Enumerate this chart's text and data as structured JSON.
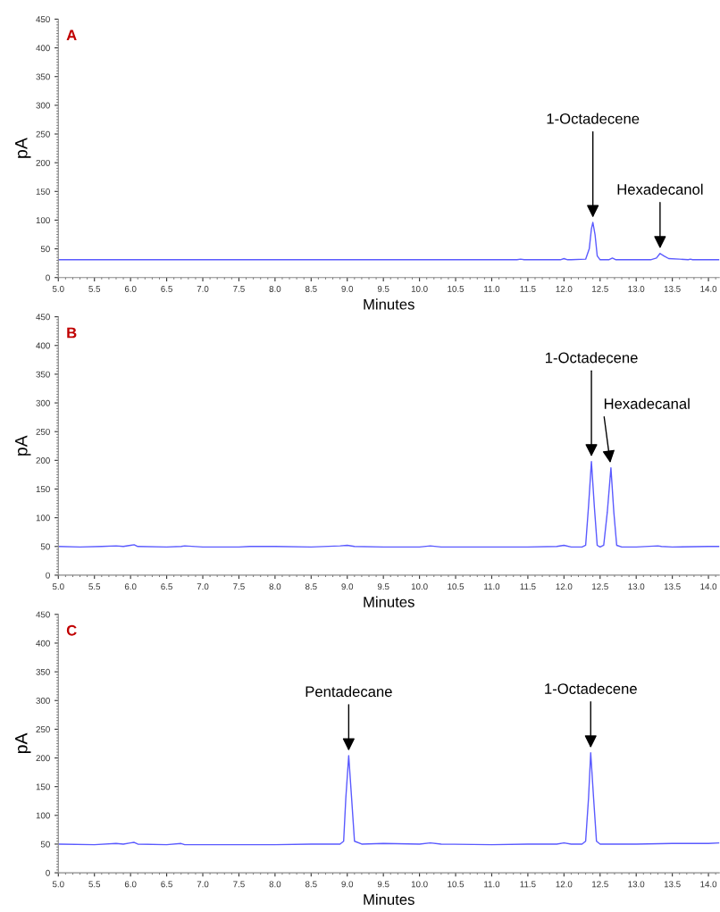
{
  "chart_data": [
    {
      "type": "line",
      "title": "A",
      "xlabel": "Minutes",
      "ylabel": "pA",
      "xlim": [
        5.0,
        14.15
      ],
      "ylim": [
        0,
        450
      ],
      "xticks": [
        {
          "value": 5.0,
          "label": "5.0"
        },
        {
          "value": 5.5,
          "label": "5.5"
        },
        {
          "value": 6.0,
          "label": "6.0"
        },
        {
          "value": 6.5,
          "label": "6.5"
        },
        {
          "value": 7.0,
          "label": "7.0"
        },
        {
          "value": 7.5,
          "label": "7.5"
        },
        {
          "value": 8.0,
          "label": "8.0"
        },
        {
          "value": 8.5,
          "label": "8.5"
        },
        {
          "value": 9.0,
          "label": "9.0"
        },
        {
          "value": 9.5,
          "label": "9.5"
        },
        {
          "value": 10.0,
          "label": "10.0"
        },
        {
          "value": 10.5,
          "label": "10.5"
        },
        {
          "value": 11.0,
          "label": "11.0"
        },
        {
          "value": 11.5,
          "label": "11.5"
        },
        {
          "value": 12.0,
          "label": "12.0"
        },
        {
          "value": 12.5,
          "label": "12.5"
        },
        {
          "value": 13.0,
          "label": "13.0"
        },
        {
          "value": 13.5,
          "label": "13.5"
        },
        {
          "value": 14.0,
          "label": "14.0"
        }
      ],
      "yticks": [
        0,
        50,
        100,
        150,
        200,
        250,
        300,
        350,
        400,
        450
      ],
      "series": [
        {
          "color": "#5a5aff",
          "x": [
            5.0,
            6.0,
            7.0,
            8.0,
            9.0,
            10.0,
            11.0,
            11.35,
            11.4,
            11.45,
            11.95,
            12.0,
            12.05,
            12.1,
            12.3,
            12.35,
            12.38,
            12.4,
            12.43,
            12.46,
            12.5,
            12.62,
            12.67,
            12.72,
            13.2,
            13.28,
            13.33,
            13.38,
            13.45,
            13.6,
            13.72,
            13.75,
            13.78,
            14.15
          ],
          "values": [
            31,
            31,
            31,
            31,
            31,
            31,
            31,
            31,
            32,
            31,
            31,
            33,
            31,
            31,
            32,
            50,
            85,
            96,
            75,
            38,
            31,
            31,
            34,
            31,
            31,
            34,
            42,
            38,
            33,
            32,
            31,
            32,
            31,
            31
          ]
        }
      ],
      "annotations": [
        {
          "text": "1-Octadecene",
          "x": 12.4,
          "y": 96
        },
        {
          "text": "Hexadecanol",
          "x": 13.33,
          "y": 42
        }
      ]
    },
    {
      "type": "line",
      "title": "B",
      "xlabel": "Minutes",
      "ylabel": "pA",
      "xlim": [
        5.0,
        14.15
      ],
      "ylim": [
        0,
        450
      ],
      "xticks": [
        {
          "value": 5.0,
          "label": "5.0"
        },
        {
          "value": 5.5,
          "label": "5.5"
        },
        {
          "value": 6.0,
          "label": "6.0"
        },
        {
          "value": 6.5,
          "label": "6.5"
        },
        {
          "value": 7.0,
          "label": "7.0"
        },
        {
          "value": 7.5,
          "label": "7.5"
        },
        {
          "value": 8.0,
          "label": "8.0"
        },
        {
          "value": 8.5,
          "label": "8.5"
        },
        {
          "value": 9.0,
          "label": "9.0"
        },
        {
          "value": 9.5,
          "label": "9.5"
        },
        {
          "value": 10.0,
          "label": "10.0"
        },
        {
          "value": 10.5,
          "label": "10.5"
        },
        {
          "value": 11.0,
          "label": "11.0"
        },
        {
          "value": 11.5,
          "label": "11.5"
        },
        {
          "value": 12.0,
          "label": "12.0"
        },
        {
          "value": 12.5,
          "label": "12.5"
        },
        {
          "value": 13.0,
          "label": "13.0"
        },
        {
          "value": 13.5,
          "label": "13.5"
        },
        {
          "value": 14.0,
          "label": "14.0"
        }
      ],
      "yticks": [
        0,
        50,
        100,
        150,
        200,
        250,
        300,
        350,
        400,
        450
      ],
      "series": [
        {
          "color": "#5a5aff",
          "x": [
            5.0,
            5.3,
            5.6,
            5.8,
            5.9,
            6.0,
            6.05,
            6.1,
            6.5,
            6.7,
            6.75,
            7.0,
            7.5,
            7.65,
            8.0,
            8.5,
            8.9,
            9.0,
            9.1,
            9.5,
            10.0,
            10.15,
            10.3,
            11.0,
            11.5,
            11.9,
            12.0,
            12.1,
            12.25,
            12.3,
            12.34,
            12.38,
            12.42,
            12.46,
            12.5,
            12.55,
            12.6,
            12.65,
            12.69,
            12.73,
            12.8,
            13.0,
            13.3,
            13.35,
            13.5,
            14.0,
            14.15
          ],
          "values": [
            50,
            49,
            50,
            51,
            50,
            52,
            53,
            50,
            49,
            50,
            51,
            49,
            49,
            50,
            50,
            49,
            51,
            52,
            50,
            49,
            49,
            51,
            49,
            49,
            49,
            50,
            52,
            49,
            49,
            52,
            120,
            198,
            120,
            52,
            49,
            52,
            110,
            187,
            110,
            52,
            49,
            49,
            51,
            50,
            49,
            50,
            50
          ]
        }
      ],
      "annotations": [
        {
          "text": "1-Octadecene",
          "x": 12.38,
          "y": 198
        },
        {
          "text": "Hexadecanal",
          "x": 12.65,
          "y": 187
        }
      ]
    },
    {
      "type": "line",
      "title": "C",
      "xlabel": "Minutes",
      "ylabel": "pA",
      "xlim": [
        5.0,
        14.15
      ],
      "ylim": [
        0,
        450
      ],
      "xticks": [
        {
          "value": 5.0,
          "label": "5.0"
        },
        {
          "value": 5.5,
          "label": "5.5"
        },
        {
          "value": 6.0,
          "label": "6.0"
        },
        {
          "value": 6.5,
          "label": "6.5"
        },
        {
          "value": 7.0,
          "label": "7.0"
        },
        {
          "value": 7.5,
          "label": "7.5"
        },
        {
          "value": 8.0,
          "label": "8.0"
        },
        {
          "value": 8.5,
          "label": "8.5"
        },
        {
          "value": 9.0,
          "label": "9.0"
        },
        {
          "value": 9.5,
          "label": "9.5"
        },
        {
          "value": 10.0,
          "label": "10.0"
        },
        {
          "value": 10.5,
          "label": "10.5"
        },
        {
          "value": 11.0,
          "label": "11.0"
        },
        {
          "value": 11.5,
          "label": "11.5"
        },
        {
          "value": 12.0,
          "label": "12.0"
        },
        {
          "value": 12.5,
          "label": "12.5"
        },
        {
          "value": 13.0,
          "label": "13.0"
        },
        {
          "value": 13.5,
          "label": "13.5"
        },
        {
          "value": 14.0,
          "label": "14.0"
        }
      ],
      "yticks": [
        0,
        50,
        100,
        150,
        200,
        250,
        300,
        350,
        400,
        450
      ],
      "series": [
        {
          "color": "#5a5aff",
          "x": [
            5.0,
            5.5,
            5.8,
            5.9,
            6.0,
            6.05,
            6.1,
            6.5,
            6.7,
            6.75,
            7.0,
            7.5,
            8.0,
            8.5,
            8.9,
            8.95,
            8.98,
            9.02,
            9.06,
            9.1,
            9.2,
            9.5,
            10.0,
            10.15,
            10.3,
            11.0,
            11.5,
            11.9,
            12.0,
            12.1,
            12.25,
            12.3,
            12.34,
            12.37,
            12.41,
            12.45,
            12.5,
            13.0,
            13.5,
            14.0,
            14.15
          ],
          "values": [
            50,
            49,
            51,
            50,
            52,
            53,
            50,
            49,
            51,
            49,
            49,
            49,
            49,
            50,
            50,
            55,
            130,
            204,
            130,
            55,
            50,
            51,
            50,
            52,
            50,
            49,
            50,
            50,
            52,
            50,
            50,
            55,
            130,
            209,
            130,
            55,
            50,
            50,
            51,
            51,
            52
          ]
        }
      ],
      "annotations": [
        {
          "text": "Pentadecane",
          "x": 9.02,
          "y": 204
        },
        {
          "text": "1-Octadecene",
          "x": 12.37,
          "y": 209
        }
      ]
    }
  ]
}
